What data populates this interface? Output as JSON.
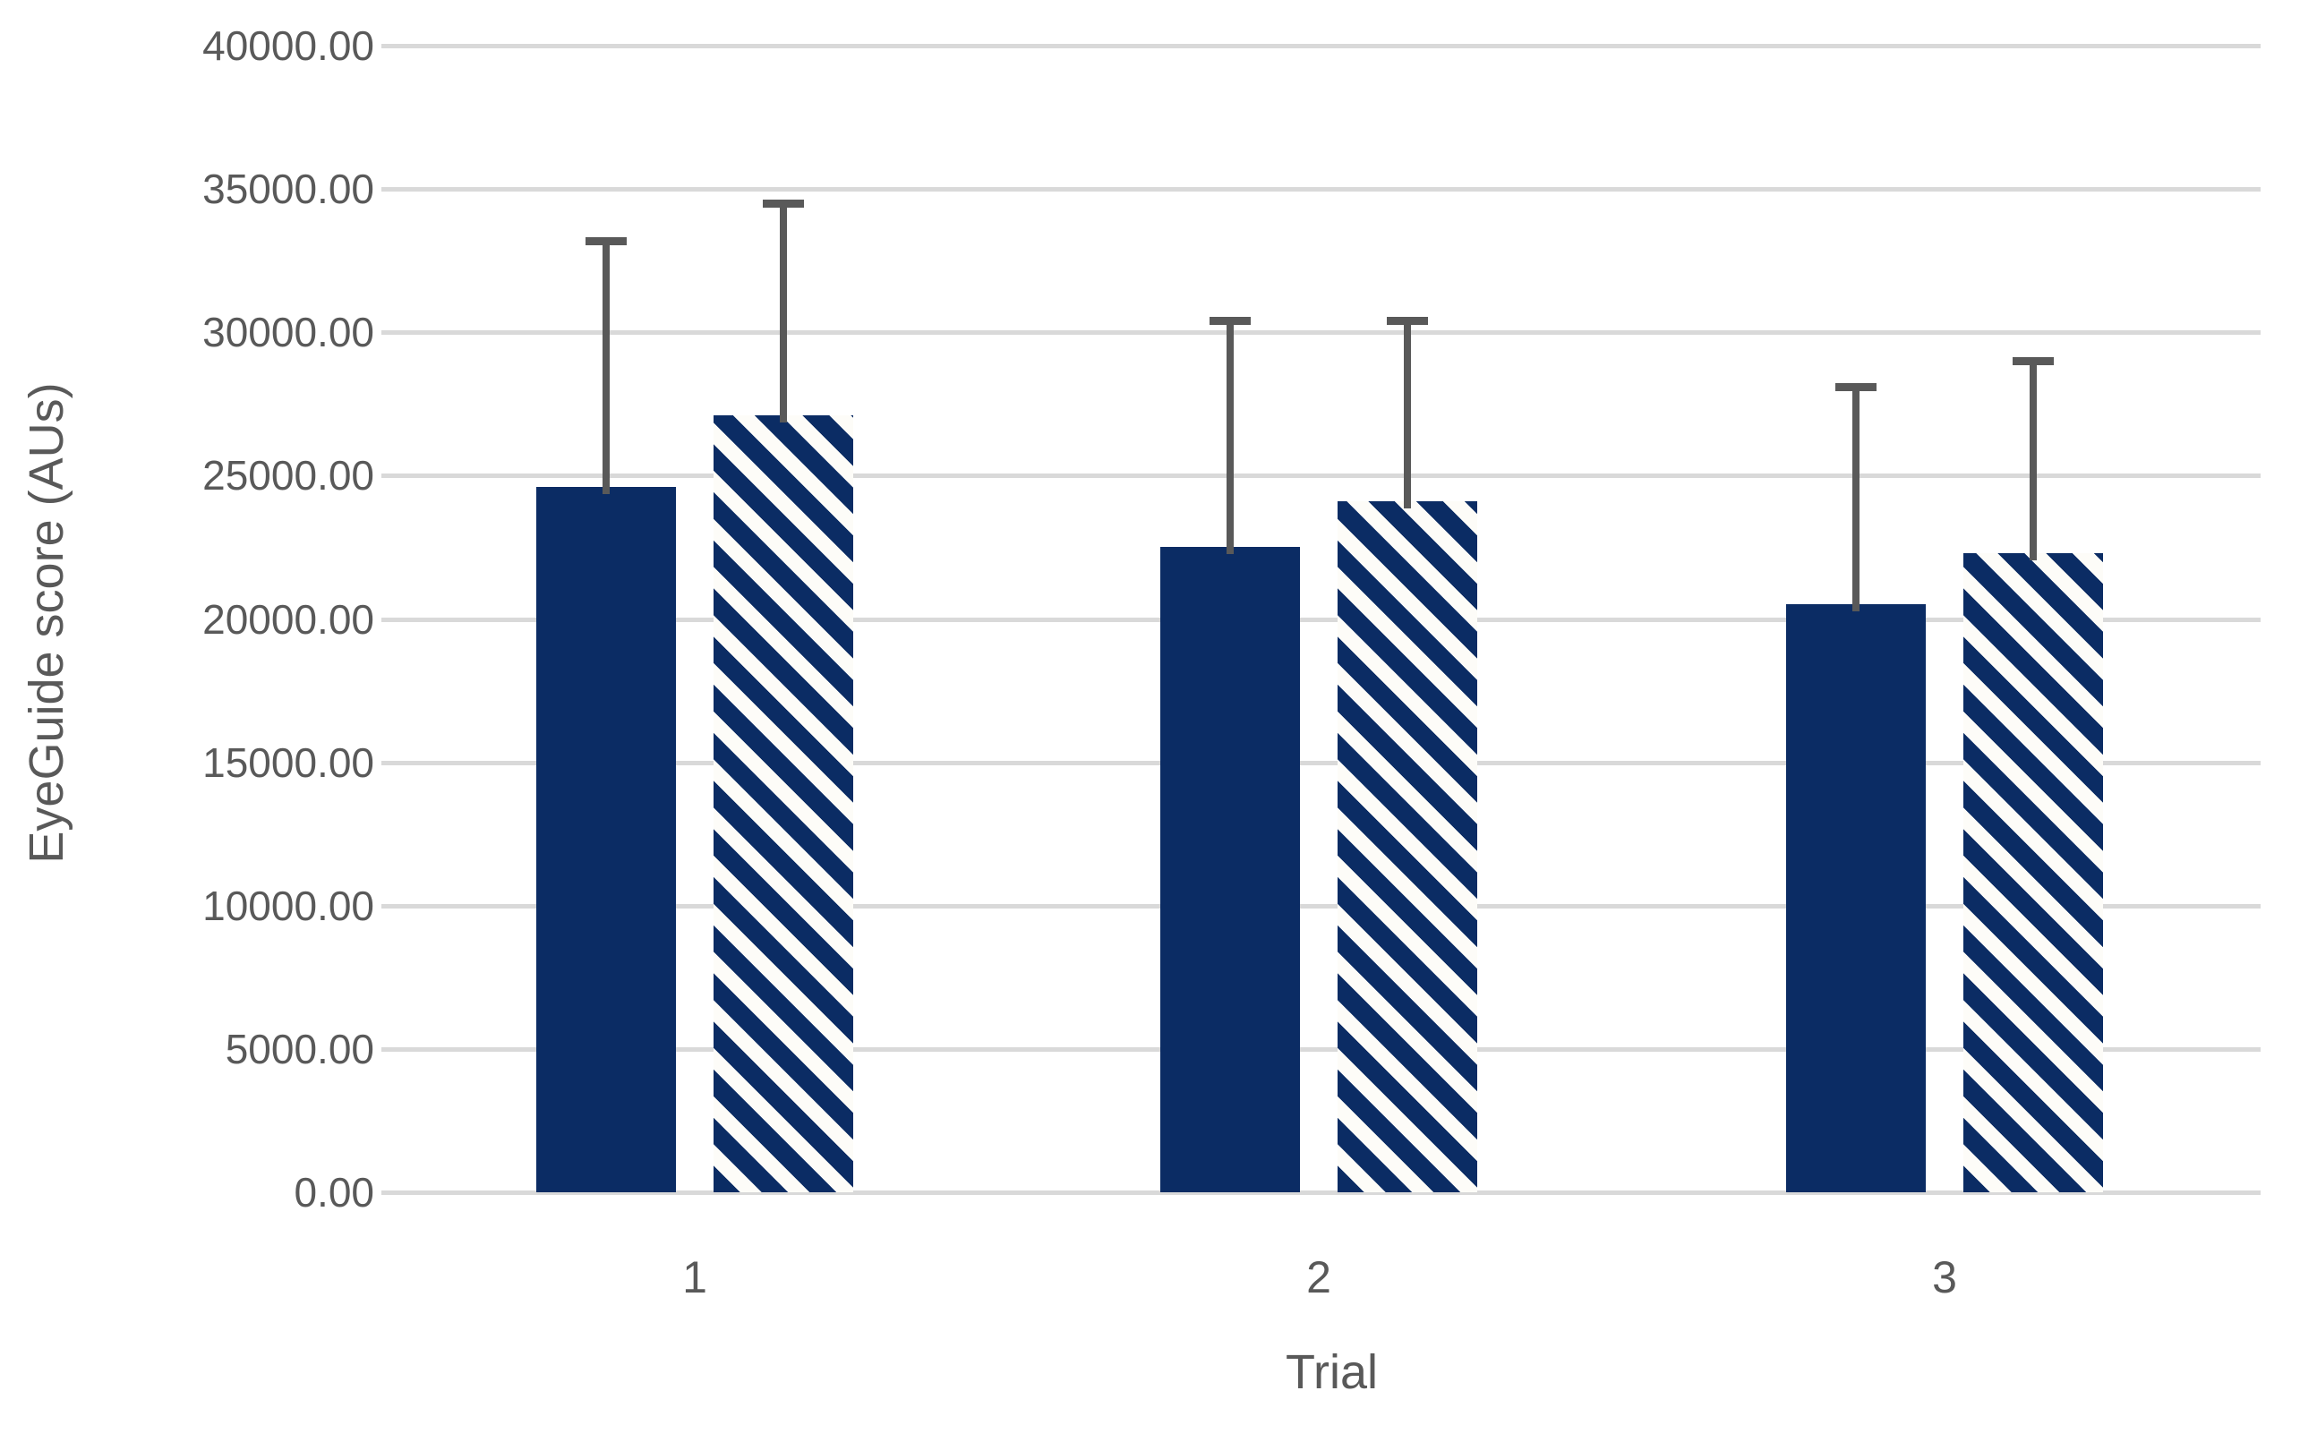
{
  "chart_data": {
    "type": "bar",
    "title": "",
    "xlabel": "Trial",
    "ylabel": "EyeGuide score (AUs)",
    "categories": [
      "1",
      "2",
      "3"
    ],
    "series": [
      {
        "name": "solid-navy",
        "style": "solid",
        "values": [
          24600,
          22500,
          20500
        ],
        "error_upper": [
          8600,
          7900,
          7600
        ]
      },
      {
        "name": "hatched-navy",
        "style": "diagonal-stripes",
        "values": [
          27100,
          24100,
          22300
        ],
        "error_upper": [
          7400,
          6300,
          6700
        ]
      }
    ],
    "ylim": [
      0,
      40000
    ],
    "ytick_step": 5000,
    "ytick_labels": [
      "0.00",
      "5000.00",
      "10000.00",
      "15000.00",
      "20000.00",
      "25000.00",
      "30000.00",
      "35000.00",
      "40000.00"
    ],
    "grid": true,
    "legend_position": "none",
    "error_bars": "upper-only",
    "colors": {
      "bar": "#0B2C64",
      "hatch_background": "#FDFCF8",
      "grid": "#D9D9D9",
      "axis": "#D9D9D9",
      "error": "#595959",
      "text": "#595959",
      "background": "#FFFFFF"
    }
  }
}
